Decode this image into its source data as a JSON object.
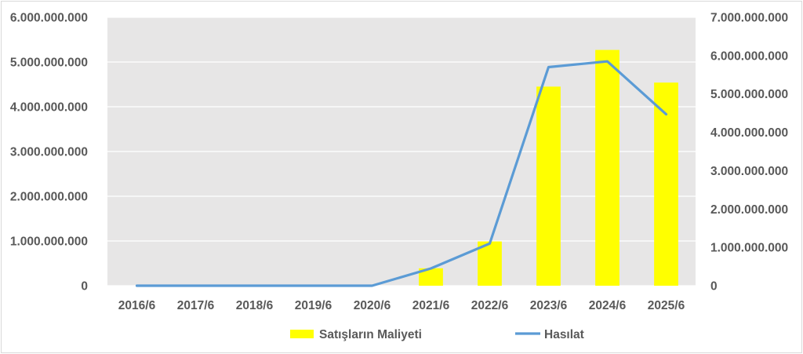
{
  "chart_data": {
    "type": "bar",
    "categories": [
      "2016/6",
      "2017/6",
      "2018/6",
      "2019/6",
      "2020/6",
      "2021/6",
      "2022/6",
      "2023/6",
      "2024/6",
      "2025/6"
    ],
    "series": [
      {
        "name": "Satışların Maliyeti",
        "type": "bar",
        "axis": "left",
        "color": "#ffff00",
        "values": [
          0,
          0,
          0,
          0,
          0,
          390000000,
          990000000,
          4450000000,
          5270000000,
          4540000000
        ]
      },
      {
        "name": "Hasılat",
        "type": "line",
        "axis": "right",
        "color": "#5b9bd5",
        "values": [
          0,
          0,
          0,
          0,
          0,
          450000000,
          1100000000,
          5700000000,
          5850000000,
          4470000000
        ]
      }
    ],
    "y_left": {
      "range": [
        0,
        6000000000
      ],
      "ticks": [
        "0",
        "1.000.000.000",
        "2.000.000.000",
        "3.000.000.000",
        "4.000.000.000",
        "5.000.000.000",
        "6.000.000.000"
      ]
    },
    "y_right": {
      "range": [
        0,
        7000000000
      ],
      "ticks": [
        "0",
        "1.000.000.000",
        "2.000.000.000",
        "3.000.000.000",
        "4.000.000.000",
        "5.000.000.000",
        "6.000.000.000",
        "7.000.000.000"
      ]
    },
    "title": "",
    "xlabel": "",
    "ylabel": "",
    "grid": true,
    "plot_background": "#e7e6e6",
    "legend_position": "bottom"
  }
}
